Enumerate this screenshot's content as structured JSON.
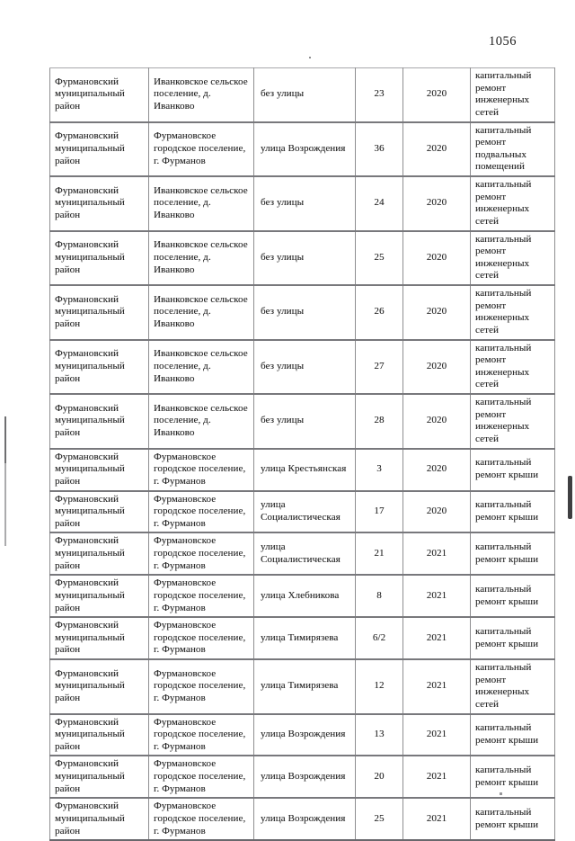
{
  "page": {
    "number": "1056"
  },
  "colors": {
    "ink": "#262626",
    "border_horizontal": "#78787c",
    "border_vertical": "#8e8e90",
    "artifact_dark": "#3f3f41",
    "artifact_light": "#ababad"
  },
  "table": {
    "column_names": [
      "district",
      "settlement",
      "street",
      "house",
      "year",
      "work"
    ],
    "rows": [
      {
        "district": "Фурмановский муниципальный район",
        "settlement": "Иванковское сельское поселение, д. Иванково",
        "street": "без улицы",
        "house": "23",
        "year": "2020",
        "work": "капитальный ремонт инженерных сетей"
      },
      {
        "district": "Фурмановский муниципальный район",
        "settlement": "Фурмановское городское поселение, г. Фурманов",
        "street": "улица Возрождения",
        "house": "36",
        "year": "2020",
        "work": "капитальный ремонт подвальных помещений"
      },
      {
        "district": "Фурмановский муниципальный район",
        "settlement": "Иванковское сельское поселение, д. Иванково",
        "street": "без улицы",
        "house": "24",
        "year": "2020",
        "work": "капитальный ремонт инженерных сетей"
      },
      {
        "district": "Фурмановский муниципальный район",
        "settlement": "Иванковское сельское поселение, д. Иванково",
        "street": "без улицы",
        "house": "25",
        "year": "2020",
        "work": "капитальный ремонт инженерных сетей"
      },
      {
        "district": "Фурмановский муниципальный район",
        "settlement": "Иванковское сельское поселение, д. Иванково",
        "street": "без улицы",
        "house": "26",
        "year": "2020",
        "work": "капитальный ремонт инженерных сетей"
      },
      {
        "district": "Фурмановский муниципальный район",
        "settlement": "Иванковское сельское поселение, д. Иванково",
        "street": "без улицы",
        "house": "27",
        "year": "2020",
        "work": "капитальный ремонт инженерных сетей"
      },
      {
        "district": "Фурмановский муниципальный район",
        "settlement": "Иванковское сельское поселение, д. Иванково",
        "street": "без улицы",
        "house": "28",
        "year": "2020",
        "work": "капитальный ремонт инженерных сетей"
      },
      {
        "district": "Фурмановский муниципальный район",
        "settlement": "Фурмановское городское поселение, г. Фурманов",
        "street": "улица Крестьянская",
        "house": "3",
        "year": "2020",
        "work": "капитальный ремонт крыши"
      },
      {
        "district": "Фурмановский муниципальный район",
        "settlement": "Фурмановское городское поселение, г. Фурманов",
        "street": "улица Социалистическая",
        "house": "17",
        "year": "2020",
        "work": "капитальный ремонт крыши"
      },
      {
        "district": "Фурмановский муниципальный район",
        "settlement": "Фурмановское городское поселение, г. Фурманов",
        "street": "улица Социалистическая",
        "house": "21",
        "year": "2021",
        "work": "капитальный ремонт крыши"
      },
      {
        "district": "Фурмановский муниципальный район",
        "settlement": "Фурмановское городское поселение, г. Фурманов",
        "street": "улица Хлебникова",
        "house": "8",
        "year": "2021",
        "work": "капитальный ремонт крыши"
      },
      {
        "district": "Фурмановский муниципальный район",
        "settlement": "Фурмановское городское поселение, г. Фурманов",
        "street": "улица Тимирязева",
        "house": "6/2",
        "year": "2021",
        "work": "капитальный ремонт крыши"
      },
      {
        "district": "Фурмановский муниципальный район",
        "settlement": "Фурмановское городское поселение, г. Фурманов",
        "street": "улица Тимирязева",
        "house": "12",
        "year": "2021",
        "work": "капитальный ремонт инженерных сетей"
      },
      {
        "district": "Фурмановский муниципальный район",
        "settlement": "Фурмановское городское поселение, г. Фурманов",
        "street": "улица Возрождения",
        "house": "13",
        "year": "2021",
        "work": "капитальный ремонт крыши"
      },
      {
        "district": "Фурмановский муниципальный район",
        "settlement": "Фурмановское городское поселение, г. Фурманов",
        "street": "улица Возрождения",
        "house": "20",
        "year": "2021",
        "work": "капитальный ремонт крыши"
      },
      {
        "district": "Фурмановский муниципальный район",
        "settlement": "Фурмановское городское поселение, г. Фурманов",
        "street": "улица Возрождения",
        "house": "25",
        "year": "2021",
        "work": "капитальный ремонт крыши"
      }
    ]
  }
}
